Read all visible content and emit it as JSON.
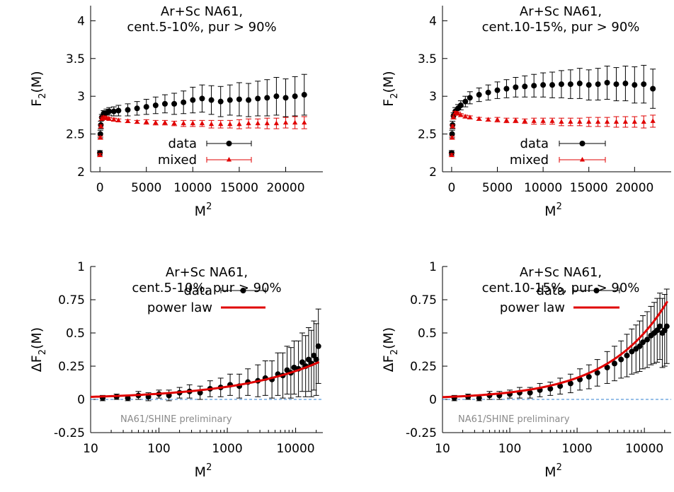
{
  "chart_data": [
    {
      "id": "p1",
      "type": "scatter",
      "title_lines": [
        "Ar+Sc NA61,",
        "cent.5-10%, pur > 90%"
      ],
      "xlabel": "M",
      "xlabel_sup": "2",
      "ylabel": "F",
      "ylabel_sub": "2",
      "ylabel_tail": "(M)",
      "xscale": "linear",
      "xlim": [
        -1000,
        24000
      ],
      "ylim": [
        2,
        4.2
      ],
      "xticks": [
        {
          "v": 0,
          "label": "0"
        },
        {
          "v": 5000,
          "label": "5000"
        },
        {
          "v": 10000,
          "label": "10000"
        },
        {
          "v": 15000,
          "label": "15000"
        },
        {
          "v": 20000,
          "label": "20000"
        }
      ],
      "yticks": [
        {
          "v": 2,
          "label": "2"
        },
        {
          "v": 2.5,
          "label": "2.5"
        },
        {
          "v": 3,
          "label": "3"
        },
        {
          "v": 3.5,
          "label": "3.5"
        },
        {
          "v": 4,
          "label": "4"
        }
      ],
      "legend": [
        "data",
        "mixed"
      ],
      "series": [
        {
          "name": "data",
          "color": "#000000",
          "marker": "circle",
          "x": [
            0,
            50,
            100,
            200,
            400,
            700,
            1000,
            1500,
            2000,
            3000,
            4000,
            5000,
            6000,
            7000,
            8000,
            9000,
            10000,
            11000,
            12000,
            13000,
            14000,
            15000,
            16000,
            17000,
            18000,
            19000,
            20000,
            21000,
            22000
          ],
          "y": [
            2.25,
            2.5,
            2.62,
            2.72,
            2.77,
            2.78,
            2.8,
            2.8,
            2.81,
            2.82,
            2.84,
            2.86,
            2.88,
            2.9,
            2.9,
            2.92,
            2.95,
            2.97,
            2.95,
            2.93,
            2.95,
            2.96,
            2.95,
            2.97,
            2.98,
            3.0,
            2.98,
            3.0,
            3.02
          ],
          "err": [
            0.03,
            0.05,
            0.05,
            0.04,
            0.04,
            0.05,
            0.05,
            0.06,
            0.07,
            0.08,
            0.09,
            0.1,
            0.11,
            0.12,
            0.14,
            0.15,
            0.17,
            0.18,
            0.19,
            0.2,
            0.2,
            0.22,
            0.22,
            0.23,
            0.24,
            0.25,
            0.25,
            0.26,
            0.27
          ]
        },
        {
          "name": "mixed",
          "color": "#e00000",
          "marker": "triangle",
          "x": [
            0,
            50,
            100,
            200,
            400,
            700,
            1000,
            1500,
            2000,
            3000,
            4000,
            5000,
            6000,
            7000,
            8000,
            9000,
            10000,
            11000,
            12000,
            13000,
            14000,
            15000,
            16000,
            17000,
            18000,
            19000,
            20000,
            21000,
            22000
          ],
          "y": [
            2.22,
            2.45,
            2.6,
            2.7,
            2.72,
            2.71,
            2.7,
            2.69,
            2.68,
            2.67,
            2.66,
            2.66,
            2.65,
            2.65,
            2.64,
            2.64,
            2.64,
            2.64,
            2.63,
            2.63,
            2.63,
            2.63,
            2.64,
            2.64,
            2.64,
            2.64,
            2.65,
            2.65,
            2.65
          ],
          "err": [
            0.02,
            0.02,
            0.02,
            0.02,
            0.02,
            0.02,
            0.02,
            0.02,
            0.02,
            0.02,
            0.02,
            0.03,
            0.03,
            0.03,
            0.03,
            0.04,
            0.04,
            0.04,
            0.05,
            0.05,
            0.05,
            0.06,
            0.06,
            0.06,
            0.07,
            0.07,
            0.07,
            0.08,
            0.08
          ]
        }
      ]
    },
    {
      "id": "p2",
      "type": "scatter",
      "title_lines": [
        "Ar+Sc NA61,",
        "cent.10-15%, pur > 90%"
      ],
      "xlabel": "M",
      "xlabel_sup": "2",
      "ylabel": "F",
      "ylabel_sub": "2",
      "ylabel_tail": "(M)",
      "xscale": "linear",
      "xlim": [
        -1000,
        24000
      ],
      "ylim": [
        2,
        4.2
      ],
      "xticks": [
        {
          "v": 0,
          "label": "0"
        },
        {
          "v": 5000,
          "label": "5000"
        },
        {
          "v": 10000,
          "label": "10000"
        },
        {
          "v": 15000,
          "label": "15000"
        },
        {
          "v": 20000,
          "label": "20000"
        }
      ],
      "yticks": [
        {
          "v": 2,
          "label": "2"
        },
        {
          "v": 2.5,
          "label": "2.5"
        },
        {
          "v": 3,
          "label": "3"
        },
        {
          "v": 3.5,
          "label": "3.5"
        },
        {
          "v": 4,
          "label": "4"
        }
      ],
      "legend": [
        "data",
        "mixed"
      ],
      "series": [
        {
          "name": "data",
          "color": "#000000",
          "marker": "circle",
          "x": [
            0,
            50,
            100,
            200,
            400,
            700,
            1000,
            1500,
            2000,
            3000,
            4000,
            5000,
            6000,
            7000,
            8000,
            9000,
            10000,
            11000,
            12000,
            13000,
            14000,
            15000,
            16000,
            17000,
            18000,
            19000,
            20000,
            21000,
            22000
          ],
          "y": [
            2.25,
            2.5,
            2.62,
            2.74,
            2.8,
            2.84,
            2.88,
            2.93,
            2.98,
            3.02,
            3.05,
            3.08,
            3.1,
            3.12,
            3.13,
            3.14,
            3.15,
            3.15,
            3.16,
            3.16,
            3.17,
            3.15,
            3.16,
            3.18,
            3.16,
            3.17,
            3.15,
            3.16,
            3.1
          ],
          "err": [
            0.03,
            0.05,
            0.05,
            0.04,
            0.05,
            0.05,
            0.06,
            0.07,
            0.08,
            0.09,
            0.1,
            0.11,
            0.12,
            0.13,
            0.14,
            0.15,
            0.16,
            0.17,
            0.18,
            0.19,
            0.2,
            0.2,
            0.21,
            0.22,
            0.22,
            0.23,
            0.24,
            0.25,
            0.26
          ]
        },
        {
          "name": "mixed",
          "color": "#e00000",
          "marker": "triangle",
          "x": [
            0,
            50,
            100,
            200,
            400,
            700,
            1000,
            1500,
            2000,
            3000,
            4000,
            5000,
            6000,
            7000,
            8000,
            9000,
            10000,
            11000,
            12000,
            13000,
            14000,
            15000,
            16000,
            17000,
            18000,
            19000,
            20000,
            21000,
            22000
          ],
          "y": [
            2.22,
            2.45,
            2.6,
            2.72,
            2.78,
            2.77,
            2.75,
            2.73,
            2.72,
            2.7,
            2.69,
            2.69,
            2.68,
            2.68,
            2.67,
            2.67,
            2.67,
            2.67,
            2.66,
            2.66,
            2.66,
            2.66,
            2.66,
            2.66,
            2.66,
            2.66,
            2.66,
            2.66,
            2.67
          ],
          "err": [
            0.02,
            0.02,
            0.02,
            0.02,
            0.02,
            0.02,
            0.02,
            0.02,
            0.02,
            0.02,
            0.02,
            0.03,
            0.03,
            0.03,
            0.03,
            0.04,
            0.04,
            0.04,
            0.05,
            0.05,
            0.05,
            0.06,
            0.06,
            0.06,
            0.07,
            0.07,
            0.07,
            0.08,
            0.08
          ]
        }
      ]
    },
    {
      "id": "p3",
      "type": "scatter",
      "title_lines": [
        "Ar+Sc NA61,",
        "cent.5-10%, pur > 90%"
      ],
      "xlabel": "M",
      "xlabel_sup": "2",
      "ylabel": "ΔF",
      "ylabel_sub": "2",
      "ylabel_tail": "(M)",
      "xscale": "log",
      "xlim": [
        10,
        25000
      ],
      "ylim": [
        -0.25,
        1
      ],
      "xticks": [
        {
          "v": 10,
          "label": "10"
        },
        {
          "v": 100,
          "label": "100"
        },
        {
          "v": 1000,
          "label": "1000"
        },
        {
          "v": 10000,
          "label": "10000"
        }
      ],
      "yticks": [
        {
          "v": -0.25,
          "label": "-0.25"
        },
        {
          "v": 0,
          "label": "0"
        },
        {
          "v": 0.25,
          "label": "0.25"
        },
        {
          "v": 0.5,
          "label": "0.5"
        },
        {
          "v": 0.75,
          "label": "0.75"
        },
        {
          "v": 1,
          "label": "1"
        }
      ],
      "legend": [
        "data",
        "power law"
      ],
      "watermark": "NA61/SHINE preliminary",
      "zero_line": 0,
      "power_law": {
        "a": 0.0085,
        "b": 0.35,
        "x_from": 10,
        "x_to": 22000
      },
      "series": [
        {
          "name": "data",
          "color": "#000000",
          "marker": "circle",
          "x": [
            15,
            24,
            35,
            50,
            70,
            100,
            140,
            200,
            280,
            400,
            560,
            800,
            1100,
            1500,
            2000,
            2800,
            3600,
            4500,
            5500,
            6500,
            7500,
            8500,
            9500,
            11000,
            12500,
            14000,
            15500,
            17000,
            18500,
            20000,
            21500
          ],
          "y": [
            0.01,
            0.02,
            0.01,
            0.03,
            0.02,
            0.04,
            0.03,
            0.05,
            0.06,
            0.05,
            0.08,
            0.09,
            0.11,
            0.1,
            0.13,
            0.14,
            0.16,
            0.15,
            0.19,
            0.18,
            0.22,
            0.2,
            0.24,
            0.23,
            0.28,
            0.25,
            0.3,
            0.27,
            0.33,
            0.3,
            0.4
          ],
          "err": [
            0.02,
            0.02,
            0.02,
            0.03,
            0.03,
            0.03,
            0.04,
            0.04,
            0.05,
            0.05,
            0.06,
            0.07,
            0.08,
            0.09,
            0.1,
            0.12,
            0.13,
            0.14,
            0.16,
            0.17,
            0.18,
            0.19,
            0.2,
            0.21,
            0.22,
            0.23,
            0.24,
            0.25,
            0.26,
            0.27,
            0.28
          ]
        }
      ]
    },
    {
      "id": "p4",
      "type": "scatter",
      "title_lines": [
        "Ar+Sc NA61,",
        "cent.10-15%, pur > 90%"
      ],
      "xlabel": "M",
      "xlabel_sup": "2",
      "ylabel": "ΔF",
      "ylabel_sub": "2",
      "ylabel_tail": "(M)",
      "xscale": "log",
      "xlim": [
        10,
        25000
      ],
      "ylim": [
        -0.25,
        1
      ],
      "xticks": [
        {
          "v": 10,
          "label": "10"
        },
        {
          "v": 100,
          "label": "100"
        },
        {
          "v": 1000,
          "label": "1000"
        },
        {
          "v": 10000,
          "label": "10000"
        }
      ],
      "yticks": [
        {
          "v": -0.25,
          "label": "-0.25"
        },
        {
          "v": 0,
          "label": "0"
        },
        {
          "v": 0.25,
          "label": "0.25"
        },
        {
          "v": 0.5,
          "label": "0.5"
        },
        {
          "v": 0.75,
          "label": "0.75"
        },
        {
          "v": 1,
          "label": "1"
        }
      ],
      "legend": [
        "data",
        "power law"
      ],
      "watermark": "NA61/SHINE preliminary",
      "zero_line": 0,
      "power_law": {
        "a": 0.0055,
        "b": 0.49,
        "x_from": 10,
        "x_to": 22000
      },
      "series": [
        {
          "name": "data",
          "color": "#000000",
          "marker": "circle",
          "x": [
            15,
            24,
            35,
            50,
            70,
            100,
            140,
            200,
            280,
            400,
            560,
            800,
            1100,
            1500,
            2000,
            2800,
            3600,
            4500,
            5500,
            6500,
            7500,
            8500,
            9500,
            11000,
            12500,
            14000,
            15500,
            17000,
            18500,
            20000,
            21500
          ],
          "y": [
            0.01,
            0.02,
            0.01,
            0.03,
            0.03,
            0.04,
            0.05,
            0.05,
            0.07,
            0.08,
            0.1,
            0.12,
            0.15,
            0.17,
            0.2,
            0.24,
            0.27,
            0.3,
            0.33,
            0.36,
            0.38,
            0.4,
            0.43,
            0.45,
            0.48,
            0.5,
            0.52,
            0.55,
            0.5,
            0.52,
            0.55
          ],
          "err": [
            0.02,
            0.02,
            0.02,
            0.03,
            0.03,
            0.03,
            0.04,
            0.04,
            0.05,
            0.05,
            0.06,
            0.07,
            0.08,
            0.09,
            0.1,
            0.12,
            0.13,
            0.14,
            0.16,
            0.17,
            0.18,
            0.19,
            0.2,
            0.21,
            0.22,
            0.23,
            0.24,
            0.25,
            0.26,
            0.27,
            0.28
          ]
        }
      ]
    }
  ]
}
